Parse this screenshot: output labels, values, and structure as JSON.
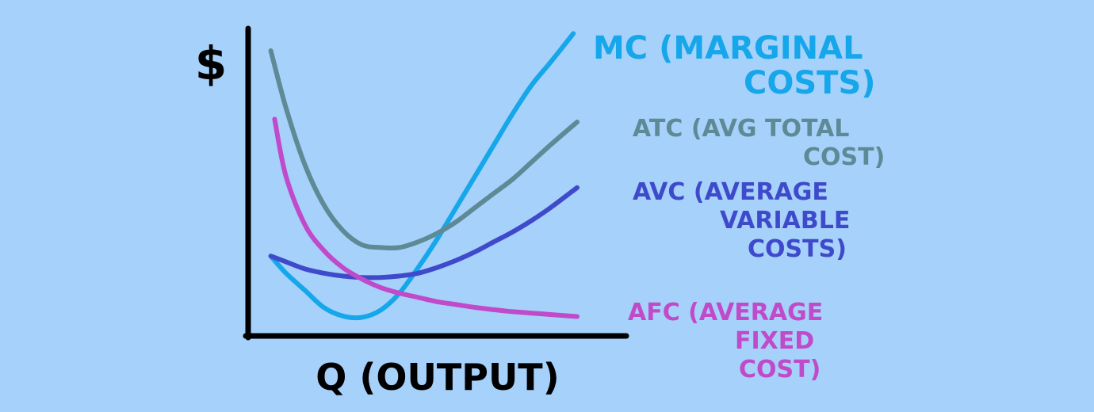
{
  "chart_data": {
    "type": "line",
    "title": "",
    "xlabel": "Q (OUTPUT)",
    "ylabel": "$",
    "xlim": [
      0,
      10
    ],
    "ylim": [
      0,
      10
    ],
    "grid": false,
    "legend": "right",
    "series": [
      {
        "name": "MC",
        "label_lines": [
          "MC (MARGINAL",
          "COSTS)"
        ],
        "color": "#16a6ea",
        "x": [
          0.6,
          1.0,
          1.5,
          2.0,
          2.5,
          3.0,
          3.5,
          4.0,
          4.5,
          5.0,
          5.5,
          6.0,
          6.5,
          7.0,
          7.5,
          8.0,
          8.6
        ],
        "y": [
          2.8,
          2.2,
          1.6,
          1.0,
          0.7,
          0.65,
          0.9,
          1.5,
          2.4,
          3.4,
          4.5,
          5.6,
          6.7,
          7.8,
          8.8,
          9.6,
          10.6
        ]
      },
      {
        "name": "ATC",
        "label_lines": [
          "ATC (AVG TOTAL",
          "COST)"
        ],
        "color": "#5e8a96",
        "x": [
          0.6,
          1.0,
          1.5,
          2.0,
          2.5,
          3.0,
          3.5,
          4.0,
          4.5,
          5.0,
          5.5,
          6.0,
          6.5,
          7.0,
          7.5,
          8.0,
          8.7
        ],
        "y": [
          10.0,
          8.0,
          6.0,
          4.6,
          3.7,
          3.2,
          3.1,
          3.1,
          3.3,
          3.6,
          4.0,
          4.5,
          5.0,
          5.5,
          6.1,
          6.7,
          7.5
        ]
      },
      {
        "name": "AVC",
        "label_lines": [
          "AVC (AVERAGE",
          "VARIABLE",
          "COSTS)"
        ],
        "color": "#3f4acb",
        "x": [
          0.6,
          1.0,
          1.5,
          2.0,
          2.5,
          3.0,
          3.5,
          4.0,
          4.5,
          5.0,
          5.5,
          6.0,
          6.5,
          7.0,
          7.5,
          8.0,
          8.7
        ],
        "y": [
          2.8,
          2.6,
          2.35,
          2.2,
          2.1,
          2.05,
          2.05,
          2.1,
          2.2,
          2.4,
          2.65,
          2.95,
          3.3,
          3.65,
          4.05,
          4.5,
          5.2
        ]
      },
      {
        "name": "AFC",
        "label_lines": [
          "AFC (AVERAGE",
          "FIXED",
          "COST)"
        ],
        "color": "#c04ac9",
        "x": [
          0.7,
          1.0,
          1.5,
          2.0,
          2.5,
          3.0,
          3.5,
          4.0,
          4.5,
          5.0,
          5.5,
          6.0,
          6.5,
          7.0,
          7.5,
          8.0,
          8.7
        ],
        "y": [
          7.6,
          5.6,
          3.9,
          3.0,
          2.4,
          2.0,
          1.7,
          1.5,
          1.35,
          1.2,
          1.1,
          1.0,
          0.92,
          0.85,
          0.8,
          0.75,
          0.68
        ]
      }
    ]
  }
}
